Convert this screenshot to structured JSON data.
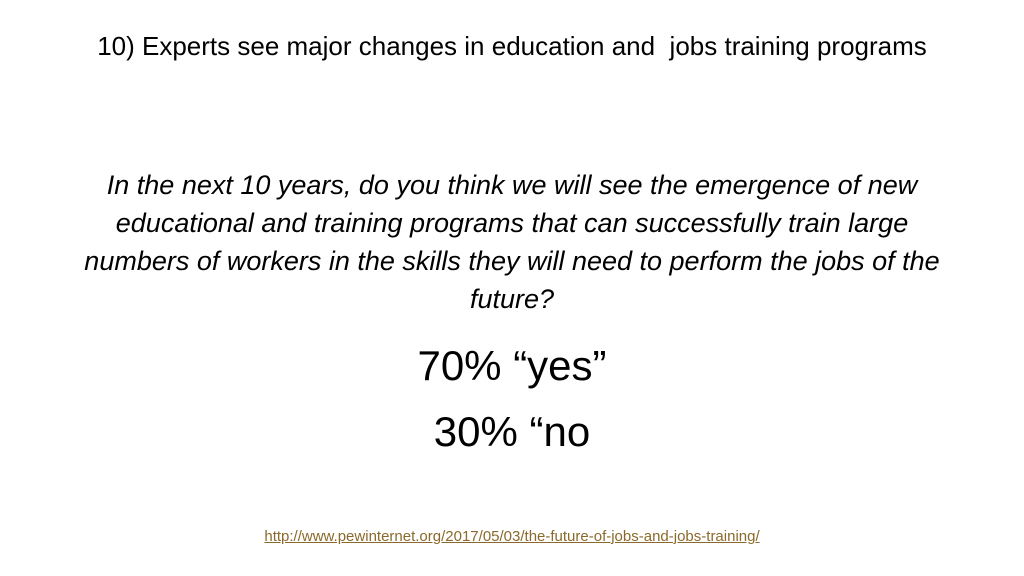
{
  "slide": {
    "title": "10) Experts see major changes in education and  jobs training programs",
    "question": "In the next 10 years, do you think we will see the emergence of new educational and training programs that can successfully train large numbers of workers in the skills they will need to perform the jobs of the future?",
    "results": {
      "yes": "70% “yes”",
      "no": "30% “no"
    },
    "source_link": "http://www.pewinternet.org/2017/05/03/the-future-of-jobs-and-jobs-training/"
  },
  "colors": {
    "background": "#ffffff",
    "text": "#000000",
    "link": "#8a6a2c"
  }
}
